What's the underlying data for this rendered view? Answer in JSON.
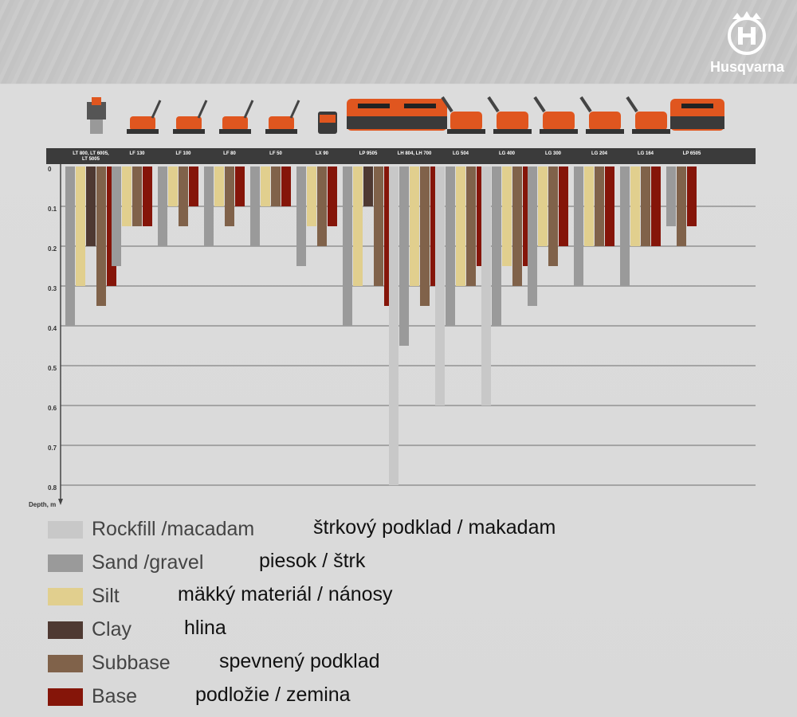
{
  "brand": {
    "name": "Husqvarna",
    "logo_icon": "crown-h-icon",
    "accent": "#ffffff"
  },
  "chart_data": {
    "type": "bar",
    "ylabel": "Depth, m",
    "ylim": [
      0,
      0.8
    ],
    "yticks": [
      "0",
      "0.1",
      "0.2",
      "0.3",
      "0.4",
      "0.5",
      "0.6",
      "0.7",
      "0.8"
    ],
    "grid": true,
    "orientation": "downward",
    "categories": [
      "LT 800, LT 6005, LT 5005",
      "LF 130",
      "LF 100",
      "LF 80",
      "LF 50",
      "LX 90",
      "LP 9505",
      "LH 804, LH 700",
      "LG 504",
      "LG 400",
      "LG 300",
      "LG 204",
      "LG 164",
      "LP 6505"
    ],
    "series": [
      {
        "name": "Rockfill /macadam",
        "color": "#c8c8c8",
        "values": [
          null,
          null,
          null,
          null,
          null,
          null,
          null,
          0.8,
          0.6,
          0.6,
          null,
          null,
          null,
          null
        ]
      },
      {
        "name": "Sand /gravel",
        "color": "#9a9a9a",
        "values": [
          0.4,
          0.25,
          0.2,
          0.2,
          0.2,
          0.25,
          0.4,
          0.45,
          0.4,
          0.4,
          0.35,
          0.3,
          0.3,
          0.15
        ]
      },
      {
        "name": "Silt",
        "color": "#e1cf8e",
        "values": [
          0.3,
          0.15,
          0.1,
          0.1,
          0.1,
          0.15,
          0.3,
          0.3,
          0.3,
          0.25,
          0.2,
          0.2,
          0.2,
          null
        ]
      },
      {
        "name": "Clay",
        "color": "#4e3932",
        "values": [
          0.2,
          null,
          null,
          null,
          null,
          null,
          0.1,
          null,
          null,
          null,
          null,
          null,
          null,
          null
        ]
      },
      {
        "name": "Subbase",
        "color": "#80624a",
        "values": [
          0.35,
          0.15,
          0.15,
          0.15,
          0.1,
          0.2,
          0.3,
          0.35,
          0.3,
          0.3,
          0.25,
          0.2,
          0.2,
          0.2
        ]
      },
      {
        "name": "Base",
        "color": "#851509",
        "values": [
          0.3,
          0.15,
          0.1,
          0.1,
          0.1,
          0.15,
          0.35,
          0.3,
          0.25,
          0.25,
          0.2,
          0.2,
          0.2,
          0.15
        ]
      }
    ]
  },
  "legend": [
    {
      "en": "Rockfill /macadam",
      "sk": "štrkový podklad / makadam",
      "color": "#c8c8c8"
    },
    {
      "en": "Sand /gravel",
      "sk": "piesok / štrk",
      "color": "#9a9a9a"
    },
    {
      "en": "Silt",
      "sk": "mäkký materiál / nánosy",
      "color": "#e1cf8e"
    },
    {
      "en": "Clay",
      "sk": "hlina",
      "color": "#4e3932"
    },
    {
      "en": "Subbase",
      "sk": "spevnený podklad",
      "color": "#80624a"
    },
    {
      "en": "Base",
      "sk": "podložie / zemina",
      "color": "#851509"
    }
  ],
  "product_icons": [
    "rammer-icon",
    "forward-plate-icon",
    "forward-plate-icon",
    "forward-plate-icon",
    "forward-plate-icon",
    "trench-compactor-icon",
    "roller-icon",
    "roller-icon",
    "reversible-plate-icon",
    "reversible-plate-icon",
    "reversible-plate-icon",
    "reversible-plate-icon",
    "reversible-plate-icon",
    "roller-icon"
  ]
}
